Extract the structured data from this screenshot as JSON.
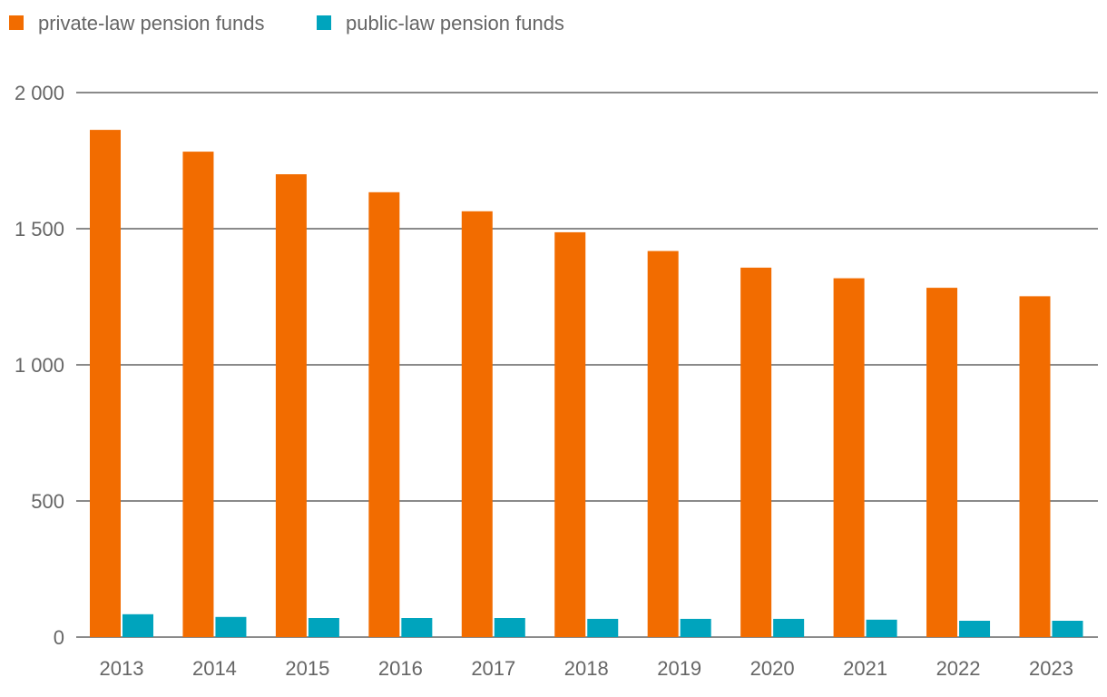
{
  "chart_data": {
    "type": "bar",
    "title": "",
    "xlabel": "",
    "ylabel": "",
    "categories": [
      "2013",
      "2014",
      "2015",
      "2016",
      "2017",
      "2018",
      "2019",
      "2020",
      "2021",
      "2022",
      "2023"
    ],
    "series": [
      {
        "name": "private-law pension funds",
        "color": "#f26c00",
        "values": [
          1863,
          1783,
          1700,
          1634,
          1564,
          1487,
          1418,
          1357,
          1318,
          1283,
          1252
        ]
      },
      {
        "name": "public-law pension funds",
        "color": "#00a4bd",
        "values": [
          84,
          74,
          70,
          70,
          70,
          67,
          67,
          67,
          64,
          60,
          60
        ]
      }
    ],
    "ylim": [
      0,
      2000
    ],
    "yticks": [
      0,
      500,
      1000,
      1500,
      2000
    ],
    "ytick_labels": [
      "0",
      "500",
      "1 000",
      "1 500",
      "2 000"
    ],
    "grid": true,
    "legend_position": "top-left"
  }
}
